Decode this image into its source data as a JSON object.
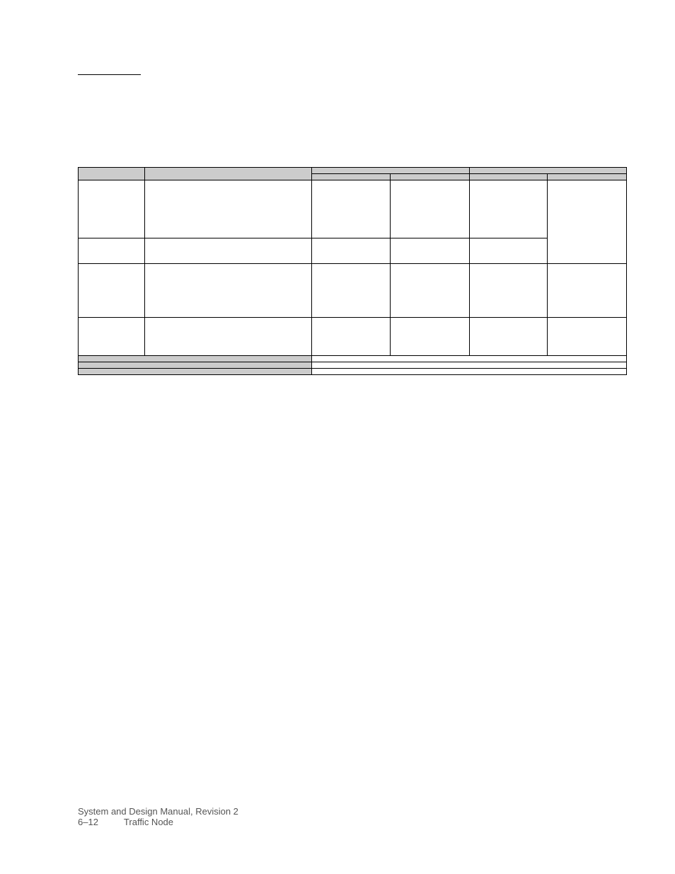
{
  "table": {
    "header_row1": {
      "col1": "",
      "col2": "",
      "col3_span": "",
      "col4_span": ""
    },
    "header_row2": {
      "col3a": "",
      "col3b": "",
      "col4a": "",
      "col4b": ""
    },
    "rows": [
      {
        "c1": "",
        "c2": "",
        "c3": "",
        "c4": "",
        "c5": "",
        "c6": ""
      },
      {
        "c1": "",
        "c2": "",
        "c3": "",
        "c4": "",
        "c5": "",
        "c6": ""
      },
      {
        "c1": "",
        "c2": "",
        "c3": "",
        "c4": "",
        "c5": "",
        "c6": ""
      },
      {
        "c1": "",
        "c2": "",
        "c3": "",
        "c4": "",
        "c5": "",
        "c6": ""
      }
    ],
    "footer_rows": [
      {
        "label": "",
        "value": ""
      },
      {
        "label": "",
        "value": ""
      },
      {
        "label": "",
        "value": ""
      }
    ]
  },
  "footer": {
    "line1": "System and Design Manual, Revision 2",
    "page": "6–12",
    "section": "Traffic Node"
  },
  "styles": {
    "header_bg": "#cccccc",
    "border_color": "#000000",
    "page_bg": "#ffffff",
    "footer_text_color": "#555555"
  }
}
